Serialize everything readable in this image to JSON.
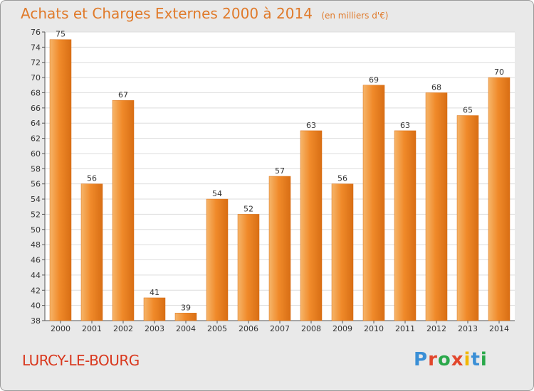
{
  "header": {
    "title": "Achats et Charges Externes 2000 à 2014",
    "subtitle": "(en milliers d'€)"
  },
  "footer": {
    "commune": "LURCY-LE-BOURG",
    "brand": "Proxiti",
    "brand_colors": [
      "#3a8fd6",
      "#e2462c",
      "#2aa84a",
      "#e2462c",
      "#f2b705",
      "#3a8fd6",
      "#2aa84a"
    ]
  },
  "colors": {
    "bar": "#f08a2a",
    "bar_light": "#f6b56a",
    "bar_dark": "#d86e14",
    "plot_bg": "#ffffff",
    "grid": "#dddddd",
    "text": "#333333",
    "accent": "#e07a2a"
  },
  "chart_data": {
    "type": "bar",
    "categories": [
      "2000",
      "2001",
      "2002",
      "2003",
      "2004",
      "2005",
      "2006",
      "2007",
      "2008",
      "2009",
      "2010",
      "2011",
      "2012",
      "2013",
      "2014"
    ],
    "values": [
      75,
      56,
      67,
      41,
      39,
      54,
      52,
      57,
      63,
      56,
      69,
      63,
      68,
      65,
      70
    ],
    "ylim": [
      38,
      76
    ],
    "yticks": [
      38,
      40,
      42,
      44,
      46,
      48,
      50,
      52,
      54,
      56,
      58,
      60,
      62,
      64,
      66,
      68,
      70,
      72,
      74,
      76
    ],
    "grid": true,
    "data_labels": true
  }
}
